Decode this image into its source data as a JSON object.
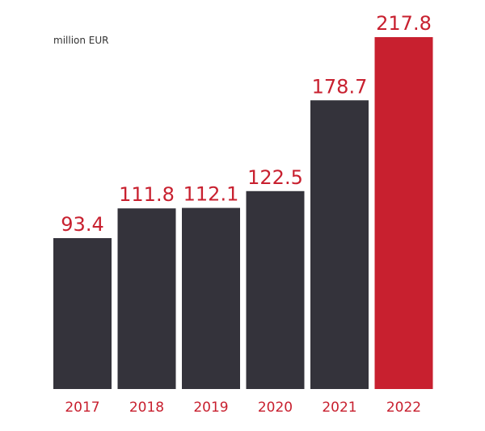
{
  "chart_data": {
    "type": "bar",
    "ylabel": "million EUR",
    "categories": [
      "2017",
      "2018",
      "2019",
      "2020",
      "2021",
      "2022"
    ],
    "values": [
      93.4,
      111.8,
      112.1,
      122.5,
      178.7,
      217.8
    ],
    "value_labels": [
      "93.4",
      "111.8",
      "112.1",
      "122.5",
      "178.7",
      "217.8"
    ],
    "highlight_index": 5,
    "ylim": [
      0,
      217.8
    ],
    "grid": false,
    "legend": "none",
    "colors": {
      "bar": "#34333b",
      "highlight_bar": "#c8202f",
      "label": "#c8202f",
      "unit": "#333333"
    }
  }
}
